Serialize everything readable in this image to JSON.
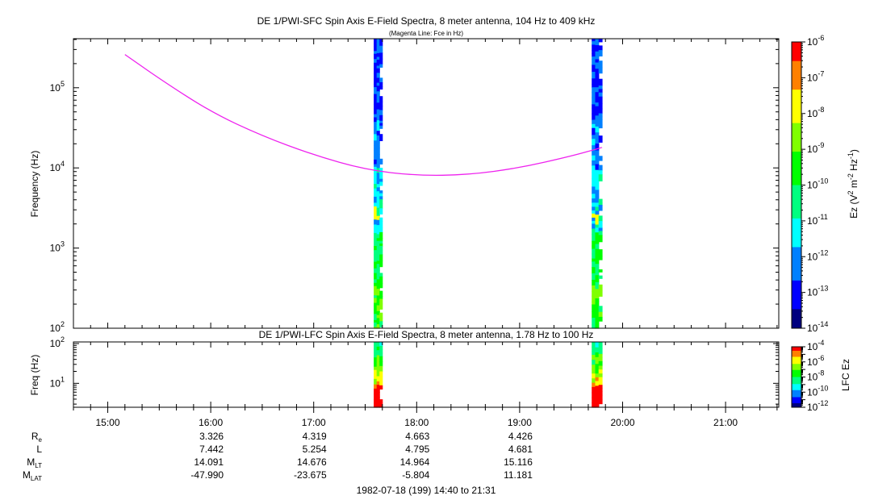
{
  "chart_data": [
    {
      "type": "heatmap",
      "title": "DE 1/PWI-SFC  Spin Axis E-Field Spectra, 8 meter antenna, 104 Hz to 409 kHz",
      "subtitle": "(Magenta Line: Fce in Hz)",
      "ylabel": "Frequency (Hz)",
      "yscale": "log",
      "ylim": [
        100,
        409000
      ],
      "y_ticks": [
        {
          "value": 100,
          "base": "10",
          "exp": "2"
        },
        {
          "value": 1000,
          "base": "10",
          "exp": "3"
        },
        {
          "value": 10000,
          "base": "10",
          "exp": "4"
        },
        {
          "value": 100000,
          "base": "10",
          "exp": "5"
        }
      ],
      "colorbar": {
        "label": "Ez (V",
        "label_sup1": "2",
        "label_mid": " m",
        "label_sup2": "-2",
        "label_mid2": " Hz",
        "label_sup3": "-1",
        "label_end": ")",
        "scale": "log",
        "range": [
          1e-14,
          1e-06
        ],
        "ticks": [
          {
            "value": 1e-06,
            "base": "10",
            "exp": "-6"
          },
          {
            "value": 1e-07,
            "base": "10",
            "exp": "-7"
          },
          {
            "value": 1e-08,
            "base": "10",
            "exp": "-8"
          },
          {
            "value": 1e-09,
            "base": "10",
            "exp": "-9"
          },
          {
            "value": 1e-10,
            "base": "10",
            "exp": "-10"
          },
          {
            "value": 1e-11,
            "base": "10",
            "exp": "-11"
          },
          {
            "value": 1e-12,
            "base": "10",
            "exp": "-12"
          },
          {
            "value": 1e-13,
            "base": "10",
            "exp": "-13"
          },
          {
            "value": 1e-14,
            "base": "10",
            "exp": "-14"
          }
        ]
      },
      "data_intervals": [
        {
          "start": "17:35",
          "end": "17:40"
        },
        {
          "start": "19:42",
          "end": "19:48"
        }
      ],
      "fce_line": {
        "color": "#ee22ee",
        "points": [
          {
            "t": "15:10",
            "f": 260000
          },
          {
            "t": "15:30",
            "f": 130000
          },
          {
            "t": "16:00",
            "f": 50000
          },
          {
            "t": "16:30",
            "f": 25000
          },
          {
            "t": "17:00",
            "f": 14500
          },
          {
            "t": "17:30",
            "f": 9500
          },
          {
            "t": "18:00",
            "f": 8000
          },
          {
            "t": "18:30",
            "f": 8200
          },
          {
            "t": "19:00",
            "f": 10000
          },
          {
            "t": "19:30",
            "f": 14000
          },
          {
            "t": "19:48",
            "f": 18000
          }
        ]
      }
    },
    {
      "type": "heatmap",
      "title": "DE 1/PWI-LFC  Spin Axis E-Field Spectra, 8 meter antenna, 1.78 Hz to 100 Hz",
      "ylabel": "Freq (Hz)",
      "yscale": "log",
      "ylim": [
        2.5,
        110
      ],
      "y_ticks": [
        {
          "value": 10,
          "base": "10",
          "exp": "1"
        },
        {
          "value": 100,
          "base": "10",
          "exp": "2"
        }
      ],
      "colorbar": {
        "label": "LFC Ez",
        "scale": "log",
        "range": [
          1e-12,
          0.0001
        ],
        "ticks": [
          {
            "value": 0.0001,
            "base": "10",
            "exp": "-4"
          },
          {
            "value": 1e-06,
            "base": "10",
            "exp": "-6"
          },
          {
            "value": 1e-08,
            "base": "10",
            "exp": "-8"
          },
          {
            "value": 1e-10,
            "base": "10",
            "exp": "-10"
          },
          {
            "value": 1e-12,
            "base": "10",
            "exp": "-12"
          }
        ]
      },
      "data_intervals": [
        {
          "start": "17:35",
          "end": "17:40"
        },
        {
          "start": "19:42",
          "end": "19:48"
        }
      ]
    }
  ],
  "time_axis": {
    "range": [
      "14:40",
      "21:31"
    ],
    "ticks": [
      "15:00",
      "16:00",
      "17:00",
      "18:00",
      "19:00",
      "20:00",
      "21:00"
    ],
    "date_label": "1982-07-18 (199) 14:40 to 21:31"
  },
  "ephemeris": {
    "rows": [
      {
        "label": "R",
        "sub": "e",
        "values": [
          "3.326",
          "4.319",
          "4.663",
          "4.426"
        ]
      },
      {
        "label": "L",
        "sub": "",
        "values": [
          "7.442",
          "5.254",
          "4.795",
          "4.681"
        ]
      },
      {
        "label": "M",
        "sub": "LT",
        "values": [
          "14.091",
          "14.676",
          "14.964",
          "15.116"
        ]
      },
      {
        "label": "M",
        "sub": "LAT",
        "values": [
          "-47.990",
          "-23.675",
          "-5.804",
          "11.181"
        ]
      }
    ],
    "times": [
      "16:00",
      "17:00",
      "18:00",
      "19:00"
    ]
  },
  "colors": {
    "fce_line": "#ee22ee",
    "colormap": [
      "#00007f",
      "#0000ff",
      "#0080ff",
      "#00ffff",
      "#00ff80",
      "#00ff00",
      "#80ff00",
      "#ffff00",
      "#ff8000",
      "#ff0000"
    ]
  }
}
